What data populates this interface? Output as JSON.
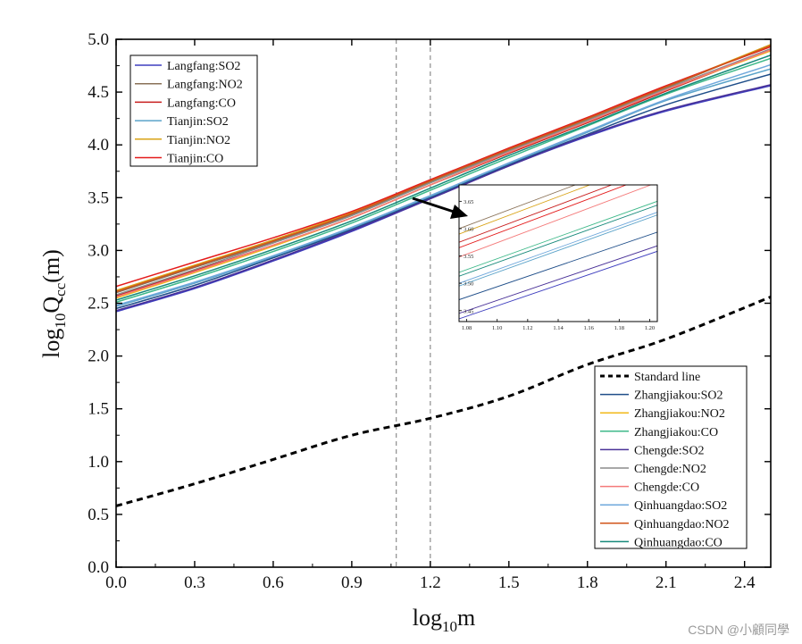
{
  "chart_data": {
    "type": "line",
    "xlabel_main": "log",
    "xlabel_sub": "10",
    "xlabel_tail": "m",
    "ylabel_main": "log",
    "ylabel_sub": "10",
    "ylabel_mid": "Q",
    "ylabel_sub2": "cc",
    "ylabel_tail": "(m)",
    "xlim": [
      0.0,
      2.5
    ],
    "ylim": [
      0.0,
      5.0
    ],
    "xticks": [
      0.0,
      0.3,
      0.6,
      0.9,
      1.2,
      1.5,
      1.8,
      2.1,
      2.4
    ],
    "xtick_labels": [
      "0.0",
      "0.3",
      "0.6",
      "0.9",
      "1.2",
      "1.5",
      "1.8",
      "2.1",
      "2.4"
    ],
    "yticks": [
      0.0,
      0.5,
      1.0,
      1.5,
      2.0,
      2.5,
      3.0,
      3.5,
      4.0,
      4.5,
      5.0
    ],
    "ytick_labels": [
      "0.0",
      "0.5",
      "1.0",
      "1.5",
      "2.0",
      "2.5",
      "3.0",
      "3.5",
      "4.0",
      "4.5",
      "5.0"
    ],
    "reference_lines_x": [
      1.07,
      1.2
    ],
    "x": [
      0.0,
      0.3,
      0.6,
      0.9,
      1.2,
      1.5,
      1.8,
      2.1,
      2.5
    ],
    "series": [
      {
        "name": "Langfang:SO2",
        "color": "#3f3fbf",
        "width": 1.5,
        "dash": "",
        "values": [
          2.42,
          2.64,
          2.9,
          3.18,
          3.49,
          3.8,
          4.08,
          4.32,
          4.56
        ]
      },
      {
        "name": "Langfang:NO2",
        "color": "#8a7258",
        "width": 1.5,
        "dash": "",
        "values": [
          2.6,
          2.84,
          3.08,
          3.34,
          3.65,
          3.95,
          4.24,
          4.54,
          4.95
        ]
      },
      {
        "name": "Langfang:CO",
        "color": "#c81e1e",
        "width": 1.5,
        "dash": "",
        "values": [
          2.57,
          2.81,
          3.05,
          3.31,
          3.62,
          3.92,
          4.21,
          4.51,
          4.9
        ]
      },
      {
        "name": "Tianjin:SO2",
        "color": "#5ba3c9",
        "width": 1.5,
        "dash": "",
        "values": [
          2.47,
          2.69,
          2.94,
          3.21,
          3.51,
          3.82,
          4.12,
          4.42,
          4.72
        ]
      },
      {
        "name": "Tianjin:NO2",
        "color": "#d9a316",
        "width": 1.5,
        "dash": "",
        "values": [
          2.62,
          2.86,
          3.1,
          3.36,
          3.66,
          3.96,
          4.25,
          4.55,
          4.95
        ]
      },
      {
        "name": "Tianjin:CO",
        "color": "#e41b1b",
        "width": 1.5,
        "dash": "",
        "values": [
          2.66,
          2.89,
          3.12,
          3.37,
          3.67,
          3.97,
          4.26,
          4.56,
          4.93
        ]
      },
      {
        "name": "Standard line",
        "color": "#000000",
        "width": 3,
        "dash": "7,5",
        "values": [
          0.58,
          0.79,
          1.02,
          1.25,
          1.41,
          1.62,
          1.92,
          2.16,
          2.56
        ]
      },
      {
        "name": "Zhangjiakou:SO2",
        "color": "#1f4e89",
        "width": 1.5,
        "dash": "",
        "values": [
          2.45,
          2.67,
          2.93,
          3.2,
          3.5,
          3.81,
          4.1,
          4.38,
          4.67
        ]
      },
      {
        "name": "Zhangjiakou:NO2",
        "color": "#f2b818",
        "width": 1.5,
        "dash": "",
        "values": [
          2.55,
          2.79,
          3.04,
          3.31,
          3.62,
          3.93,
          4.22,
          4.52,
          4.89
        ]
      },
      {
        "name": "Zhangjiakou:CO",
        "color": "#3fb98a",
        "width": 1.5,
        "dash": "",
        "values": [
          2.51,
          2.74,
          2.99,
          3.26,
          3.57,
          3.88,
          4.18,
          4.48,
          4.82
        ]
      },
      {
        "name": "Chengde:SO2",
        "color": "#4a3298",
        "width": 1.5,
        "dash": "",
        "values": [
          2.43,
          2.65,
          2.91,
          3.19,
          3.49,
          3.8,
          4.09,
          4.33,
          4.57
        ]
      },
      {
        "name": "Chengde:NO2",
        "color": "#8c8c8c",
        "width": 1.5,
        "dash": "",
        "values": [
          2.58,
          2.82,
          3.07,
          3.33,
          3.64,
          3.94,
          4.23,
          4.53,
          4.91
        ]
      },
      {
        "name": "Chengde:CO",
        "color": "#f47a7a",
        "width": 1.5,
        "dash": "",
        "values": [
          2.56,
          2.8,
          3.05,
          3.31,
          3.62,
          3.93,
          4.22,
          4.52,
          4.9
        ]
      },
      {
        "name": "Qinhuangdao:SO2",
        "color": "#6fa8dc",
        "width": 1.5,
        "dash": "",
        "values": [
          2.48,
          2.7,
          2.95,
          3.22,
          3.52,
          3.83,
          4.13,
          4.43,
          4.76
        ]
      },
      {
        "name": "Qinhuangdao:NO2",
        "color": "#d1541a",
        "width": 1.5,
        "dash": "",
        "values": [
          2.61,
          2.85,
          3.09,
          3.35,
          3.66,
          3.96,
          4.25,
          4.55,
          4.94
        ]
      },
      {
        "name": "Qinhuangdao:CO",
        "color": "#16897a",
        "width": 1.5,
        "dash": "",
        "values": [
          2.53,
          2.76,
          3.01,
          3.28,
          3.59,
          3.9,
          4.19,
          4.49,
          4.85
        ]
      }
    ],
    "legend_top_left": [
      "Langfang:SO2",
      "Langfang:NO2",
      "Langfang:CO",
      "Tianjin:SO2",
      "Tianjin:NO2",
      "Tianjin:CO"
    ],
    "legend_bottom_right": [
      "Standard line",
      "Zhangjiakou:SO2",
      "Zhangjiakou:NO2",
      "Zhangjiakou:CO",
      "Chengde:SO2",
      "Chengde:NO2",
      "Chengde:CO",
      "Qinhuangdao:SO2",
      "Qinhuangdao:NO2",
      "Qinhuangdao:CO"
    ],
    "inset": {
      "xlim": [
        1.075,
        1.205
      ],
      "ylim": [
        3.43,
        3.68
      ],
      "xtick_labels": [
        "1.08",
        "1.10",
        "1.12",
        "1.14",
        "1.16",
        "1.18",
        "1.20"
      ],
      "xticks": [
        1.08,
        1.1,
        1.12,
        1.14,
        1.16,
        1.18,
        1.2
      ],
      "ytick_labels": [
        "3.45",
        "3.50",
        "3.55",
        "3.60",
        "3.65"
      ],
      "yticks": [
        3.45,
        3.5,
        3.55,
        3.6,
        3.65
      ],
      "lines": [
        {
          "color": "#8a7258",
          "y0": 3.6,
          "slope": 1.05
        },
        {
          "color": "#d9a316",
          "y0": 3.59,
          "slope": 1.05
        },
        {
          "color": "#c81e1e",
          "y0": 3.575,
          "slope": 1.05
        },
        {
          "color": "#e41b1b",
          "y0": 3.565,
          "slope": 1.05
        },
        {
          "color": "#f47a7a",
          "y0": 3.548,
          "slope": 1.05
        },
        {
          "color": "#3fb98a",
          "y0": 3.52,
          "slope": 1.0
        },
        {
          "color": "#16897a",
          "y0": 3.513,
          "slope": 1.0
        },
        {
          "color": "#6fa8dc",
          "y0": 3.5,
          "slope": 1.0
        },
        {
          "color": "#5ba3c9",
          "y0": 3.495,
          "slope": 1.0
        },
        {
          "color": "#1f4e89",
          "y0": 3.47,
          "slope": 0.95
        },
        {
          "color": "#4a3298",
          "y0": 3.445,
          "slope": 0.95
        },
        {
          "color": "#3f3fbf",
          "y0": 3.435,
          "slope": 0.95
        }
      ]
    }
  },
  "watermark": "CSDN @小顧同學"
}
